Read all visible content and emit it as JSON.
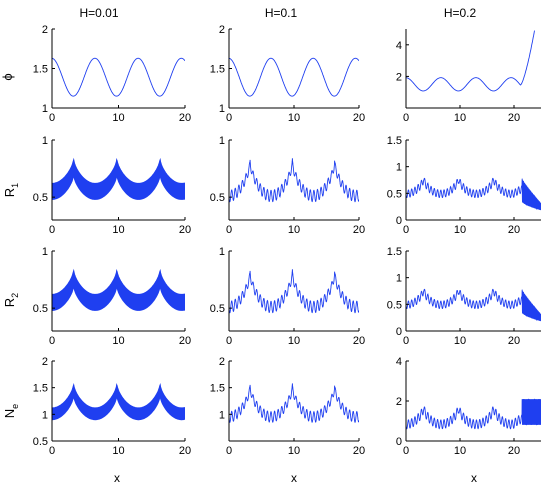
{
  "figure": {
    "column_titles": [
      "H=0.01",
      "H=0.1",
      "H=0.2"
    ],
    "row_labels": [
      {
        "main": "ϕ",
        "sub": ""
      },
      {
        "main": "R",
        "sub": "1"
      },
      {
        "main": "R",
        "sub": "2"
      },
      {
        "main": "N",
        "sub": "e"
      }
    ],
    "xlabel": "x",
    "line_color": "#1f3ff0"
  },
  "chart_data": [
    {
      "type": "line",
      "row": 0,
      "col": 0,
      "xlim": [
        0,
        20
      ],
      "ylim": [
        1,
        2
      ],
      "xticks": [
        0,
        10,
        20
      ],
      "yticks": [
        1,
        1.5,
        2
      ],
      "pattern": "cos",
      "period": 6.5,
      "phase": 3.2,
      "center": 1.39,
      "amp": 0.24
    },
    {
      "type": "line",
      "row": 0,
      "col": 1,
      "xlim": [
        0,
        20
      ],
      "ylim": [
        1,
        2
      ],
      "xticks": [
        0,
        10,
        20
      ],
      "yticks": [
        1,
        1.5,
        2
      ],
      "pattern": "cos",
      "period": 6.5,
      "phase": 3.2,
      "center": 1.39,
      "amp": 0.24
    },
    {
      "type": "line",
      "row": 0,
      "col": 2,
      "xlim": [
        0,
        25
      ],
      "ylim": [
        0,
        5
      ],
      "xticks": [
        0,
        10,
        20
      ],
      "yticks": [
        2,
        4
      ],
      "pattern": "cos_blowup",
      "period": 6.5,
      "phase": 3.2,
      "center": 1.5,
      "amp": 0.42,
      "blowup_start": 21.2,
      "blowup_end": 23.8,
      "blowup_value": 4.9
    },
    {
      "type": "line",
      "row": 1,
      "col": 0,
      "xlim": [
        0,
        20
      ],
      "ylim": [
        0.3,
        1
      ],
      "xticks": [
        0,
        10,
        20
      ],
      "yticks": [
        0.5,
        1
      ],
      "pattern": "dense_band",
      "period": 6.5,
      "peak": 0.84,
      "trough_upper": 0.62,
      "band": 0.14
    },
    {
      "type": "line",
      "row": 1,
      "col": 1,
      "xlim": [
        0,
        20
      ],
      "ylim": [
        0.3,
        1
      ],
      "xticks": [
        0,
        10,
        20
      ],
      "yticks": [
        0.5,
        1
      ],
      "pattern": "osc",
      "period": 6.5,
      "base": 0.56,
      "peak": 0.84,
      "osc_amp": 0.05,
      "osc_period": 0.55
    },
    {
      "type": "line",
      "row": 1,
      "col": 2,
      "xlim": [
        0,
        25
      ],
      "ylim": [
        0,
        1.5
      ],
      "xticks": [
        0,
        10,
        20
      ],
      "yticks": [
        0,
        0.5,
        1,
        1.5
      ],
      "pattern": "osc_decay",
      "period": 6.5,
      "base": 0.56,
      "peak": 0.85,
      "last_peak": 1.2,
      "last_peak_x": 20.3,
      "osc_amp": 0.07,
      "osc_period": 0.6,
      "tail_start": 21.5,
      "tail_end_value": 0.25
    },
    {
      "type": "line",
      "row": 2,
      "col": 0,
      "xlim": [
        0,
        20
      ],
      "ylim": [
        0.3,
        1
      ],
      "xticks": [
        0,
        10,
        20
      ],
      "yticks": [
        0.5,
        1
      ],
      "pattern": "dense_band",
      "period": 6.5,
      "peak": 0.84,
      "trough_upper": 0.62,
      "band": 0.14
    },
    {
      "type": "line",
      "row": 2,
      "col": 1,
      "xlim": [
        0,
        20
      ],
      "ylim": [
        0.3,
        1
      ],
      "xticks": [
        0,
        10,
        20
      ],
      "yticks": [
        0.5,
        1
      ],
      "pattern": "osc",
      "period": 6.5,
      "base": 0.56,
      "peak": 0.84,
      "osc_amp": 0.05,
      "osc_period": 0.55
    },
    {
      "type": "line",
      "row": 2,
      "col": 2,
      "xlim": [
        0,
        25
      ],
      "ylim": [
        0,
        1.5
      ],
      "xticks": [
        0,
        10,
        20
      ],
      "yticks": [
        0,
        0.5,
        1,
        1.5
      ],
      "pattern": "osc_decay",
      "period": 6.5,
      "base": 0.56,
      "peak": 0.85,
      "last_peak": 1.2,
      "last_peak_x": 20.3,
      "osc_amp": 0.07,
      "osc_period": 0.6,
      "tail_start": 21.5,
      "tail_end_value": 0.25
    },
    {
      "type": "line",
      "row": 3,
      "col": 0,
      "xlim": [
        0,
        20
      ],
      "ylim": [
        0.5,
        2
      ],
      "xticks": [
        0,
        10,
        20
      ],
      "yticks": [
        0.5,
        1,
        1.5,
        2
      ],
      "pattern": "dense_band",
      "period": 6.5,
      "peak": 1.58,
      "trough_upper": 1.12,
      "band": 0.22
    },
    {
      "type": "line",
      "row": 3,
      "col": 1,
      "xlim": [
        0,
        20
      ],
      "ylim": [
        0.5,
        2
      ],
      "xticks": [
        0,
        10,
        20
      ],
      "yticks": [
        1,
        1.5,
        2
      ],
      "pattern": "osc",
      "period": 6.5,
      "base": 1.05,
      "peak": 1.58,
      "osc_amp": 0.1,
      "osc_period": 0.55
    },
    {
      "type": "line",
      "row": 3,
      "col": 2,
      "xlim": [
        0,
        25
      ],
      "ylim": [
        0,
        4
      ],
      "xticks": [
        0,
        10,
        20
      ],
      "yticks": [
        0,
        2,
        4
      ],
      "pattern": "osc_band_tail",
      "period": 6.5,
      "base": 1.05,
      "peak": 1.9,
      "last_peak": 3.4,
      "last_peak_x": 20.3,
      "osc_amp": 0.22,
      "osc_period": 0.6,
      "tail_start": 21.5,
      "tail_center": 1.45,
      "tail_band": 0.65
    }
  ]
}
